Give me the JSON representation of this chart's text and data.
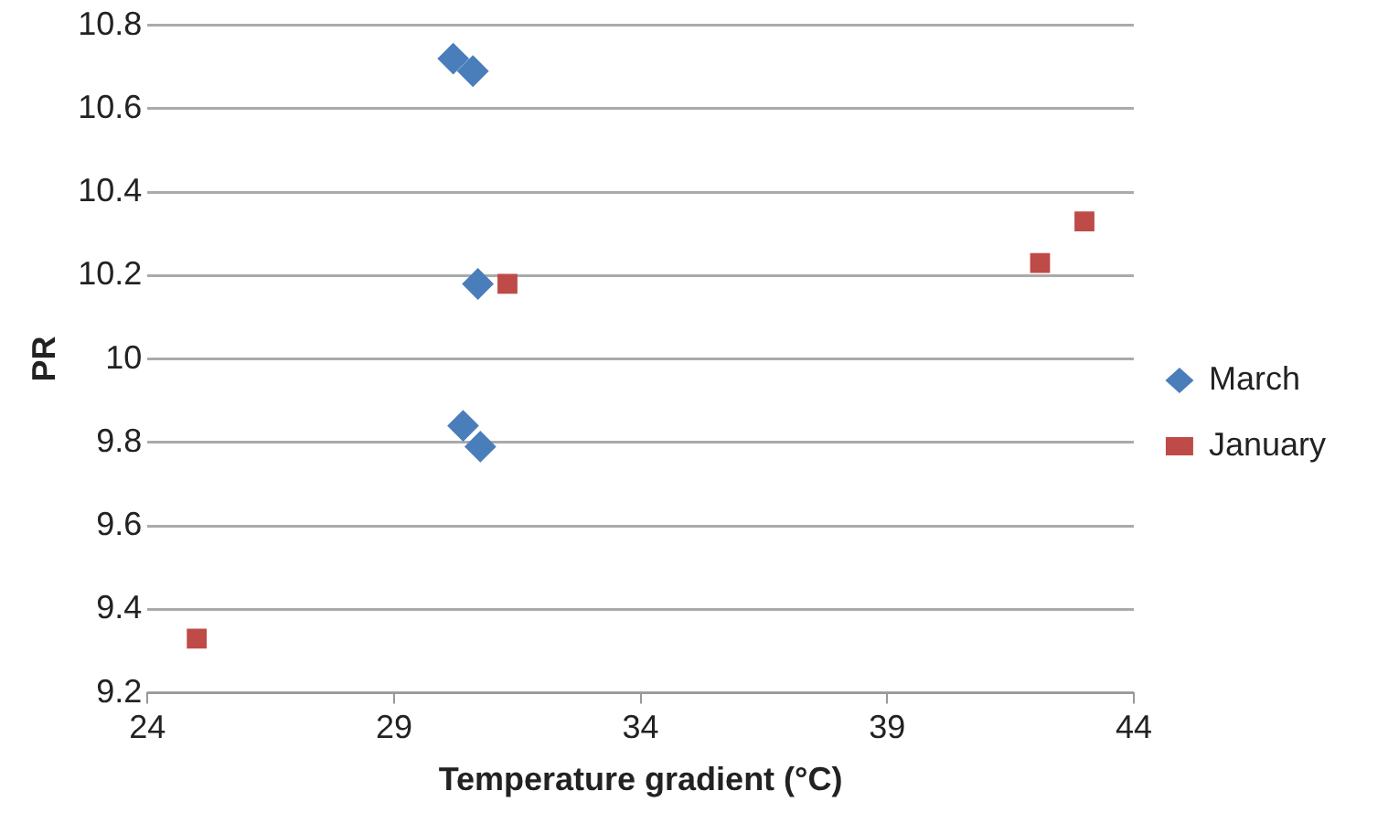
{
  "chart_data": {
    "type": "scatter",
    "xlabel": "Temperature gradient (°C)",
    "ylabel": "PR",
    "series": [
      {
        "name": "March",
        "color": "#4a7ebb",
        "marker": "diamond",
        "x": [
          30.2,
          30.6,
          30.7,
          30.4,
          30.75
        ],
        "values": [
          10.72,
          10.69,
          10.18,
          9.84,
          9.79
        ]
      },
      {
        "name": "January",
        "color": "#be4b48",
        "marker": "square",
        "x": [
          31.3,
          25.0,
          42.1,
          43.0
        ],
        "values": [
          10.18,
          9.33,
          10.23,
          10.33
        ]
      }
    ],
    "xlim": [
      24,
      44
    ],
    "xticks": [
      24,
      29,
      34,
      39,
      44
    ],
    "ylim": [
      9.2,
      10.8
    ],
    "yticks": [
      9.2,
      9.4,
      9.6,
      9.8,
      10,
      10.2,
      10.4,
      10.6,
      10.8
    ],
    "grid": "y",
    "legend": "right"
  }
}
